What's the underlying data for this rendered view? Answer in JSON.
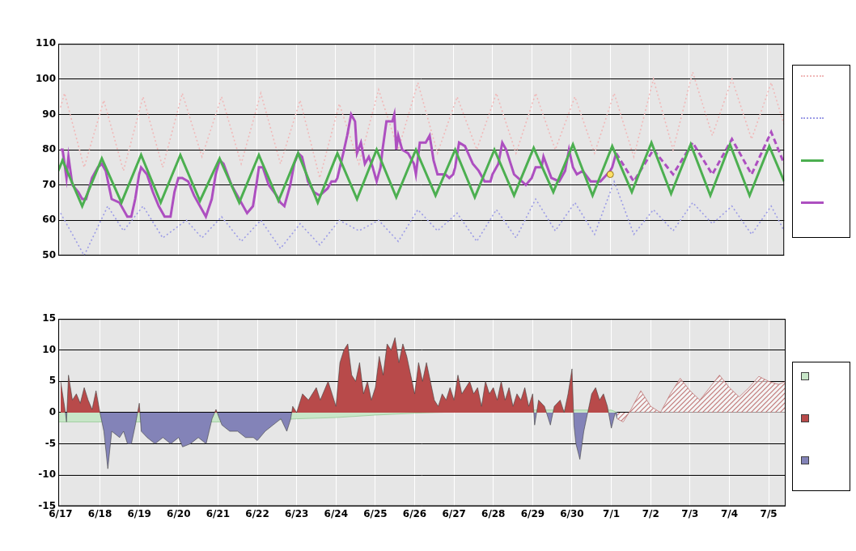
{
  "chart_data": [
    {
      "type": "line",
      "xlim": [
        -0.06,
        18.43
      ],
      "xticks": [
        {
          "value": 0,
          "label": "6/17"
        },
        {
          "value": 1,
          "label": "6/18"
        },
        {
          "value": 2,
          "label": "6/19"
        },
        {
          "value": 3,
          "label": "6/20"
        },
        {
          "value": 4,
          "label": "6/21"
        },
        {
          "value": 5,
          "label": "6/22"
        },
        {
          "value": 6,
          "label": "6/23"
        },
        {
          "value": 7,
          "label": "6/24"
        },
        {
          "value": 8,
          "label": "6/25"
        },
        {
          "value": 9,
          "label": "6/26"
        },
        {
          "value": 10,
          "label": "6/27"
        },
        {
          "value": 11,
          "label": "6/28"
        },
        {
          "value": 12,
          "label": "6/29"
        },
        {
          "value": 13,
          "label": "6/30"
        },
        {
          "value": 14,
          "label": "7/1"
        },
        {
          "value": 15,
          "label": "7/2"
        },
        {
          "value": 16,
          "label": "7/3"
        },
        {
          "value": 17,
          "label": "7/4"
        },
        {
          "value": 18,
          "label": "7/5"
        }
      ],
      "ylim": [
        50,
        110
      ],
      "yticks": [
        50,
        60,
        70,
        80,
        90,
        100,
        110
      ],
      "grid": true,
      "legend": "right",
      "tick_labels": "y",
      "series": [
        {
          "color": "#f0b8b8",
          "line_style": "dotted",
          "x": [
            0,
            0.1,
            0.6,
            1.1,
            1.6,
            2.1,
            2.6,
            3.1,
            3.6,
            4.1,
            4.6,
            5.1,
            5.6,
            6.1,
            6.6,
            7.1,
            7.6,
            8.1,
            8.6,
            9.1,
            9.6,
            10.1,
            10.6,
            11.1,
            11.6,
            12.1,
            12.6,
            13.1,
            13.6,
            14.1,
            14.6,
            15.1,
            15.6,
            16.1,
            16.6,
            17.1,
            17.6,
            18.1,
            18.43
          ],
          "values": [
            92,
            96,
            75,
            94,
            74,
            95,
            75,
            96,
            78,
            95,
            76,
            96,
            76,
            94,
            72,
            93,
            76,
            97,
            80,
            99,
            79,
            95,
            80,
            96,
            79,
            96,
            80,
            95,
            79,
            96,
            78,
            100,
            80,
            102,
            84,
            100,
            83,
            99,
            87
          ]
        },
        {
          "color": "#9c9ce6",
          "line_style": "dotted",
          "x": [
            0,
            0.6,
            1.2,
            1.6,
            2.1,
            2.6,
            3.2,
            3.6,
            4.1,
            4.6,
            5.1,
            5.6,
            6.1,
            6.6,
            7.1,
            7.6,
            8.1,
            8.6,
            9.1,
            9.6,
            10.1,
            10.6,
            11.1,
            11.6,
            12.1,
            12.6,
            13.1,
            13.6,
            14.1,
            14.6,
            15.1,
            15.6,
            16.1,
            16.6,
            17.1,
            17.6,
            18.1,
            18.43
          ],
          "values": [
            62,
            50,
            64,
            57,
            64,
            55,
            60,
            55,
            61,
            54,
            60,
            52,
            59,
            53,
            60,
            57,
            60,
            54,
            63,
            57,
            62,
            54,
            63,
            55,
            66,
            57,
            65,
            56,
            71,
            56,
            63,
            57,
            65,
            59,
            64,
            56,
            64,
            57
          ]
        },
        {
          "color": "#4caf50",
          "line_style": "solid",
          "x": [
            -0.06,
            0.05,
            0.55,
            1.05,
            1.55,
            2.05,
            2.55,
            3.05,
            3.55,
            4.05,
            4.55,
            5.05,
            5.55,
            6.05,
            6.55,
            7.05,
            7.55,
            8.05,
            8.55,
            9.05,
            9.55,
            10.05,
            10.55,
            11.05,
            11.55,
            12.05,
            12.55,
            13.05,
            13.55,
            14.05,
            14.55,
            15.05,
            15.55,
            16.05,
            16.55,
            17.05,
            17.55,
            18.05,
            18.43
          ],
          "values": [
            74,
            77,
            64,
            77.5,
            65,
            78.5,
            65,
            78.5,
            65.5,
            77.5,
            65,
            78.5,
            65.5,
            79,
            65,
            79,
            66,
            80,
            66.5,
            80,
            67,
            80,
            66.5,
            80,
            67,
            80.5,
            68,
            81.5,
            67,
            81,
            68,
            82,
            67.5,
            81.5,
            67,
            81.5,
            67,
            81,
            71
          ]
        },
        {
          "color": "#ad4fc0",
          "line_style": "solid",
          "x": [
            0,
            0.05,
            0.15,
            0.2,
            0.3,
            0.45,
            0.55,
            0.65,
            0.8,
            0.95,
            1.05,
            1.15,
            1.3,
            1.5,
            1.6,
            1.7,
            1.8,
            1.9,
            2.0,
            2.05,
            2.2,
            2.35,
            2.5,
            2.65,
            2.8,
            2.9,
            3.0,
            3.1,
            3.25,
            3.4,
            3.55,
            3.7,
            3.85,
            3.95,
            4.05,
            4.15,
            4.35,
            4.55,
            4.75,
            4.9,
            5.0,
            5.05,
            5.15,
            5.3,
            5.5,
            5.6,
            5.7,
            5.85,
            5.95,
            6.05,
            6.15,
            6.3,
            6.45,
            6.6,
            6.8,
            6.9,
            7.0,
            7.05,
            7.2,
            7.3,
            7.4,
            7.5,
            7.55,
            7.65,
            7.75,
            7.85,
            7.95,
            8.05,
            8.15,
            8.2,
            8.3,
            8.45,
            8.5,
            8.55,
            8.6,
            8.7,
            8.85,
            9.0,
            9.05,
            9.15,
            9.3,
            9.4,
            9.5,
            9.6,
            9.8,
            9.9,
            10.0,
            10.05,
            10.15,
            10.3,
            10.5,
            10.65,
            10.8,
            10.95,
            11.0,
            11.15,
            11.25,
            11.35,
            11.55,
            11.75,
            11.85,
            12.0,
            12.1,
            12.25,
            12.3,
            12.5,
            12.7,
            12.85,
            12.95,
            13.05,
            13.15,
            13.3,
            13.5,
            13.75,
            14.0,
            14.05,
            14.15
          ],
          "values": [
            80,
            80,
            72,
            78,
            70,
            68,
            66,
            66,
            72,
            75,
            76,
            74,
            66,
            65,
            63,
            61,
            61,
            66,
            73,
            75,
            73,
            68,
            64,
            61,
            61,
            68,
            72,
            72,
            71,
            67,
            64,
            61,
            66,
            73,
            77,
            76,
            70,
            66,
            62,
            64,
            71,
            75,
            75,
            70,
            67,
            65,
            64,
            70,
            76,
            79,
            78,
            71,
            68,
            67,
            69,
            71,
            71,
            72,
            79,
            84,
            90,
            88,
            79,
            82,
            76,
            78,
            75,
            71,
            75,
            80,
            88,
            88,
            90,
            80,
            84,
            80,
            79,
            76,
            73,
            82,
            82,
            84,
            77,
            73,
            73,
            72,
            73,
            75,
            82,
            81,
            76,
            74,
            71,
            71,
            73,
            76,
            82,
            80,
            73,
            71,
            70,
            72,
            75,
            75,
            78,
            72,
            71,
            74,
            80,
            75,
            73,
            74,
            71,
            71,
            74,
            75,
            79
          ]
        },
        {
          "color": "#ad4fc0",
          "line_style": "dashed",
          "x": [
            14.15,
            14.6,
            15.1,
            15.6,
            16.1,
            16.6,
            17.1,
            17.6,
            18.1,
            18.43
          ],
          "values": [
            79,
            71,
            80,
            73,
            82,
            73,
            83,
            73,
            85,
            76
          ]
        },
        {
          "type": "scatter",
          "color": "#ffe066",
          "marker": "circle",
          "x": [
            14.0
          ],
          "values": [
            73
          ]
        }
      ]
    },
    {
      "type": "area",
      "xlim": [
        -0.06,
        18.43
      ],
      "xticks": [
        {
          "value": 0,
          "label": "6/17"
        },
        {
          "value": 1,
          "label": "6/18"
        },
        {
          "value": 2,
          "label": "6/19"
        },
        {
          "value": 3,
          "label": "6/20"
        },
        {
          "value": 4,
          "label": "6/21"
        },
        {
          "value": 5,
          "label": "6/22"
        },
        {
          "value": 6,
          "label": "6/23"
        },
        {
          "value": 7,
          "label": "6/24"
        },
        {
          "value": 8,
          "label": "6/25"
        },
        {
          "value": 9,
          "label": "6/26"
        },
        {
          "value": 10,
          "label": "6/27"
        },
        {
          "value": 11,
          "label": "6/28"
        },
        {
          "value": 12,
          "label": "6/29"
        },
        {
          "value": 13,
          "label": "6/30"
        },
        {
          "value": 14,
          "label": "7/1"
        },
        {
          "value": 15,
          "label": "7/2"
        },
        {
          "value": 16,
          "label": "7/3"
        },
        {
          "value": 17,
          "label": "7/4"
        },
        {
          "value": 18,
          "label": "7/5"
        }
      ],
      "ylim": [
        -15,
        15
      ],
      "yticks": [
        -15,
        -10,
        -5,
        0,
        5,
        10,
        15
      ],
      "grid": true,
      "legend": "right",
      "series": [
        {
          "color": "#c8e6c8",
          "x": [
            -0.06,
            4.5,
            6,
            7,
            8,
            9,
            10,
            11,
            12,
            13,
            14,
            14.15
          ],
          "values": [
            -1.5,
            -1.5,
            -1,
            -0.8,
            -0.4,
            -0.1,
            0.1,
            0.3,
            0.4,
            0.4,
            0.4,
            0
          ]
        },
        {
          "colors": [
            "#b84a4a",
            "#8383b8"
          ],
          "x": [
            0,
            0.1,
            0.15,
            0.2,
            0.3,
            0.4,
            0.5,
            0.6,
            0.7,
            0.8,
            0.9,
            1.0,
            1.1,
            1.2,
            1.3,
            1.4,
            1.5,
            1.6,
            1.7,
            1.8,
            1.9,
            2.0,
            2.05,
            2.2,
            2.4,
            2.6,
            2.8,
            3.0,
            3.1,
            3.3,
            3.5,
            3.7,
            3.85,
            3.95,
            4.1,
            4.3,
            4.5,
            4.7,
            4.9,
            5.0,
            5.2,
            5.4,
            5.6,
            5.75,
            5.85,
            5.9,
            6.0,
            6.15,
            6.3,
            6.5,
            6.6,
            6.8,
            6.9,
            7.0,
            7.1,
            7.2,
            7.3,
            7.4,
            7.5,
            7.6,
            7.7,
            7.8,
            7.9,
            8.0,
            8.1,
            8.2,
            8.3,
            8.4,
            8.5,
            8.6,
            8.7,
            8.8,
            8.9,
            9.0,
            9.1,
            9.2,
            9.3,
            9.4,
            9.5,
            9.6,
            9.7,
            9.8,
            9.9,
            10.0,
            10.1,
            10.2,
            10.3,
            10.4,
            10.5,
            10.6,
            10.7,
            10.8,
            10.9,
            11.0,
            11.1,
            11.2,
            11.3,
            11.4,
            11.5,
            11.6,
            11.7,
            11.8,
            11.9,
            12.0,
            12.05,
            12.15,
            12.3,
            12.45,
            12.55,
            12.7,
            12.8,
            12.9,
            13.0,
            13.05,
            13.1,
            13.2,
            13.3,
            13.4,
            13.5,
            13.6,
            13.7,
            13.8,
            13.9,
            14.0,
            14.1,
            14.15
          ],
          "values": [
            5,
            1,
            -1.5,
            6,
            2,
            3,
            1.5,
            4,
            2,
            0.5,
            3.5,
            0,
            -3,
            -9,
            -3,
            -3.5,
            -4,
            -3,
            -5,
            -5,
            -2,
            1.5,
            -3,
            -4,
            -5,
            -4,
            -5,
            -4,
            -5.5,
            -5,
            -4,
            -5,
            -1,
            0.5,
            -2,
            -3,
            -3,
            -4,
            -4,
            -4.5,
            -3,
            -2,
            -1,
            -3,
            -1,
            1,
            0,
            3,
            2,
            4,
            2,
            5,
            3,
            1,
            8,
            10,
            11,
            6,
            5,
            8,
            3,
            5,
            2,
            4,
            9,
            6,
            11,
            10,
            12,
            8,
            11,
            9,
            6,
            3,
            8,
            5,
            8,
            5,
            2,
            1,
            3,
            2,
            4,
            2,
            6,
            3,
            4,
            5,
            3,
            4,
            1,
            5,
            3,
            4,
            2,
            5,
            2,
            4,
            1,
            3,
            2,
            4,
            1,
            3,
            -2,
            2,
            1,
            -2,
            1,
            2,
            0,
            3,
            7,
            -2,
            -5,
            -7.5,
            -3,
            0,
            3,
            4,
            2,
            3,
            1,
            -2.5,
            0,
            -1
          ]
        },
        {
          "color": "#c07878",
          "line_style": "hatched",
          "x": [
            14.15,
            14.3,
            14.5,
            14.75,
            15.0,
            15.25,
            15.5,
            15.75,
            16.0,
            16.25,
            16.5,
            16.75,
            17.0,
            17.25,
            17.5,
            17.75,
            18.0,
            18.25,
            18.43
          ],
          "values": [
            -1,
            -1.5,
            0.5,
            3.5,
            1,
            0,
            3,
            5.5,
            3.5,
            2,
            4,
            6,
            4,
            2.5,
            4,
            5.8,
            5,
            4.5,
            5
          ]
        }
      ]
    }
  ]
}
